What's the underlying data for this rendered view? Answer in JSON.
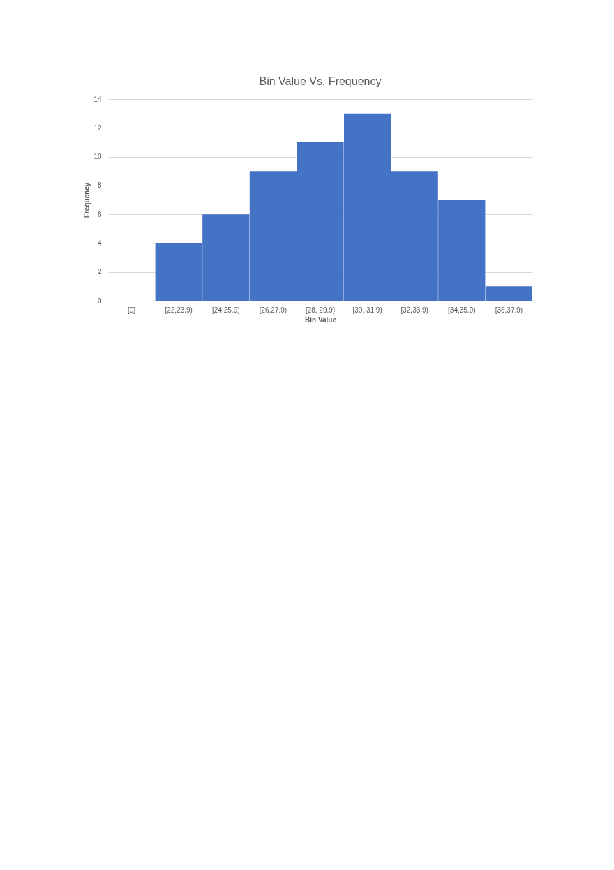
{
  "chart_data": {
    "type": "bar",
    "title": "Bin Value Vs. Frequency",
    "xlabel": "Bin Value",
    "ylabel": "Frequency",
    "categories": [
      "[0]",
      "[22,23.9)",
      "[24,25.9)",
      "[26,27.9)",
      "[28, 29.9)",
      "[30, 31.9)",
      "[32,33.9)",
      "[34,35.9)",
      "[36,37.9)"
    ],
    "values": [
      0,
      4,
      6,
      9,
      11,
      13,
      9,
      7,
      1
    ],
    "color": "#4472c4",
    "ylim": [
      0,
      14
    ],
    "yticks": [
      0,
      2,
      4,
      6,
      8,
      10,
      12,
      14
    ],
    "grid": "y"
  }
}
